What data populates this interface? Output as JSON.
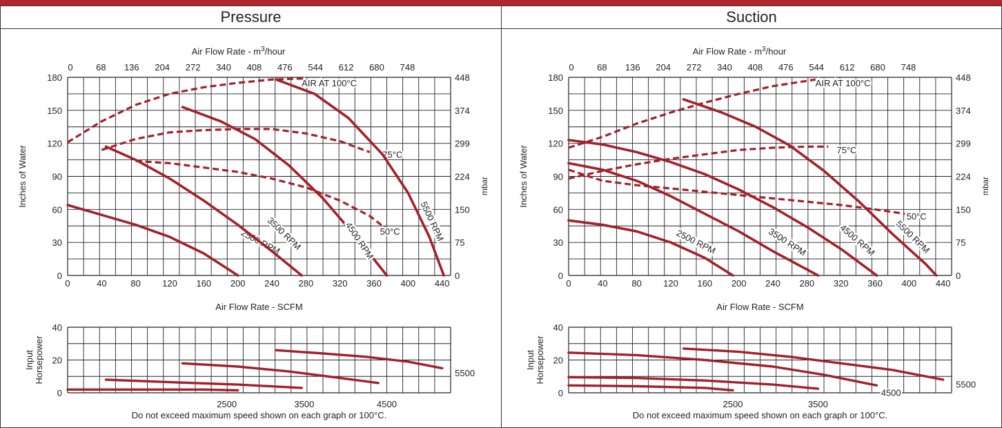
{
  "colors": {
    "curve": "#a3202a",
    "grid": "#222222",
    "header": "#b0272d"
  },
  "chart_data": [
    {
      "type": "line",
      "title": "Pressure",
      "top_axis_label": "Air Flow Rate - m",
      "top_axis_label_sup": "3",
      "top_axis_label_tail": "/hour",
      "top_axis_ticks": [
        "0",
        "68",
        "136",
        "204",
        "272",
        "340",
        "408",
        "476",
        "544",
        "612",
        "680",
        "748"
      ],
      "xlabel": "Air Flow Rate - SCFM",
      "x_ticks": [
        "0",
        "40",
        "80",
        "120",
        "160",
        "200",
        "240",
        "280",
        "320",
        "360",
        "400",
        "440"
      ],
      "ylabel": "Inches of Water",
      "y_ticks": [
        "0",
        "30",
        "60",
        "90",
        "120",
        "150",
        "180"
      ],
      "y2label": "mbar",
      "y2_ticks": [
        "0",
        "75",
        "150",
        "224",
        "299",
        "374",
        "448"
      ],
      "xlim": [
        0,
        450
      ],
      "ylim": [
        0,
        180
      ],
      "series": [
        {
          "name": "2500 RPM",
          "label_at": [
            225,
            28
          ],
          "label_rotate": 28,
          "points": [
            [
              0,
              64
            ],
            [
              40,
              55
            ],
            [
              80,
              46
            ],
            [
              120,
              35
            ],
            [
              160,
              20
            ],
            [
              200,
              0
            ]
          ]
        },
        {
          "name": "3500 RPM",
          "label_at": [
            252,
            36
          ],
          "label_rotate": 44,
          "points": [
            [
              45,
              117
            ],
            [
              80,
              105
            ],
            [
              120,
              88
            ],
            [
              160,
              68
            ],
            [
              200,
              46
            ],
            [
              240,
              22
            ],
            [
              275,
              0
            ]
          ]
        },
        {
          "name": "4500 RPM",
          "label_at": [
            340,
            30
          ],
          "label_rotate": 56,
          "points": [
            [
              135,
              153
            ],
            [
              180,
              140
            ],
            [
              220,
              124
            ],
            [
              260,
              100
            ],
            [
              300,
              70
            ],
            [
              340,
              34
            ],
            [
              375,
              0
            ]
          ]
        },
        {
          "name": "5500 RPM",
          "label_at": [
            425,
            48
          ],
          "label_rotate": 65,
          "points": [
            [
              245,
              178
            ],
            [
              290,
              165
            ],
            [
              330,
              143
            ],
            [
              370,
              110
            ],
            [
              400,
              75
            ],
            [
              425,
              35
            ],
            [
              442,
              0
            ]
          ]
        }
      ],
      "limit_curves": [
        {
          "name": "AIR AT 100°C",
          "label_at": [
            275,
            175
          ],
          "label_align": "start",
          "points": [
            [
              0,
              121
            ],
            [
              40,
              140
            ],
            [
              80,
              155
            ],
            [
              120,
              165
            ],
            [
              160,
              171
            ],
            [
              200,
              175
            ],
            [
              240,
              178
            ],
            [
              280,
              179
            ]
          ]
        },
        {
          "name": "75°C",
          "label_at": [
            370,
            110
          ],
          "label_align": "start",
          "points": [
            [
              40,
              114
            ],
            [
              80,
              124
            ],
            [
              120,
              130
            ],
            [
              160,
              132
            ],
            [
              200,
              133
            ],
            [
              240,
              133
            ],
            [
              280,
              129
            ],
            [
              320,
              122
            ],
            [
              355,
              112
            ]
          ]
        },
        {
          "name": "50°C",
          "label_at": [
            367,
            40
          ],
          "label_align": "start",
          "points": [
            [
              80,
              104
            ],
            [
              120,
              102
            ],
            [
              160,
              98
            ],
            [
              200,
              94
            ],
            [
              240,
              88
            ],
            [
              280,
              80
            ],
            [
              320,
              68
            ],
            [
              355,
              54
            ],
            [
              375,
              42
            ]
          ]
        }
      ],
      "hp": {
        "ylabel_lines": [
          "Input",
          "Horsepower"
        ],
        "y_ticks": [
          "0",
          "20",
          "40"
        ],
        "ylim": [
          0,
          40
        ],
        "series": [
          {
            "name": "2500",
            "label_at": [
              187,
              -3
            ],
            "label_align": "middle",
            "points": [
              [
                0,
                2
              ],
              [
                80,
                2
              ],
              [
                160,
                2
              ],
              [
                200,
                1.5
              ]
            ]
          },
          {
            "name": "3500",
            "label_at": [
              278,
              -3
            ],
            "label_align": "middle",
            "points": [
              [
                45,
                8
              ],
              [
                120,
                6.5
              ],
              [
                200,
                5
              ],
              [
                275,
                3
              ]
            ]
          },
          {
            "name": "4500",
            "label_at": [
              375,
              -3
            ],
            "label_align": "middle",
            "points": [
              [
                135,
                18
              ],
              [
                200,
                16
              ],
              [
                260,
                13
              ],
              [
                320,
                9
              ],
              [
                365,
                6
              ]
            ]
          },
          {
            "name": "5500",
            "label_at": [
              455,
              16
            ],
            "label_align": "start",
            "points": [
              [
                245,
                26
              ],
              [
                300,
                24
              ],
              [
                350,
                22
              ],
              [
                400,
                19
              ],
              [
                440,
                15
              ]
            ]
          }
        ]
      },
      "note": "Do not exceed maximum speed shown on each graph or 100°C."
    },
    {
      "type": "line",
      "title": "Suction",
      "top_axis_label": "Air Flow Rate - m",
      "top_axis_label_sup": "3",
      "top_axis_label_tail": "/hour",
      "top_axis_ticks": [
        "0",
        "68",
        "136",
        "204",
        "272",
        "340",
        "408",
        "476",
        "544",
        "612",
        "680",
        "748"
      ],
      "xlabel": "Air Flow Rate - SCFM",
      "x_ticks": [
        "0",
        "40",
        "80",
        "120",
        "160",
        "200",
        "240",
        "280",
        "320",
        "360",
        "400",
        "440"
      ],
      "ylabel": "Inches of Water",
      "y_ticks": [
        "0",
        "30",
        "60",
        "90",
        "120",
        "150",
        "180"
      ],
      "y2label": "mbar",
      "y2_ticks": [
        "0",
        "75",
        "150",
        "224",
        "299",
        "374",
        "448"
      ],
      "xlim": [
        0,
        450
      ],
      "ylim": [
        0,
        180
      ],
      "series": [
        {
          "name": "2500 RPM",
          "label_at": [
            148,
            28
          ],
          "label_rotate": 27,
          "points": [
            [
              0,
              50
            ],
            [
              40,
              46
            ],
            [
              80,
              40
            ],
            [
              120,
              30
            ],
            [
              160,
              16
            ],
            [
              193,
              0
            ]
          ]
        },
        {
          "name": "3500 RPM",
          "label_at": [
            255,
            28
          ],
          "label_rotate": 33,
          "points": [
            [
              0,
              102
            ],
            [
              40,
              96
            ],
            [
              80,
              86
            ],
            [
              120,
              72
            ],
            [
              160,
              56
            ],
            [
              200,
              40
            ],
            [
              240,
              22
            ],
            [
              293,
              0
            ]
          ]
        },
        {
          "name": "4500 RPM",
          "label_at": [
            337,
            30
          ],
          "label_rotate": 41,
          "points": [
            [
              0,
              123
            ],
            [
              40,
              119
            ],
            [
              80,
              112
            ],
            [
              120,
              103
            ],
            [
              160,
              92
            ],
            [
              200,
              78
            ],
            [
              240,
              62
            ],
            [
              280,
              44
            ],
            [
              320,
              24
            ],
            [
              362,
              0
            ]
          ]
        },
        {
          "name": "5500 RPM",
          "label_at": [
            402,
            33
          ],
          "label_rotate": 44,
          "points": [
            [
              135,
              160
            ],
            [
              180,
              148
            ],
            [
              220,
              135
            ],
            [
              260,
              118
            ],
            [
              300,
              95
            ],
            [
              340,
              68
            ],
            [
              380,
              38
            ],
            [
              420,
              10
            ],
            [
              432,
              0
            ]
          ]
        }
      ],
      "limit_curves": [
        {
          "name": "AIR AT 100°C",
          "label_at": [
            290,
            175
          ],
          "label_align": "start",
          "points": [
            [
              0,
              116
            ],
            [
              40,
              126
            ],
            [
              80,
              138
            ],
            [
              120,
              148
            ],
            [
              160,
              157
            ],
            [
              200,
              165
            ],
            [
              240,
              172
            ],
            [
              290,
              178
            ]
          ]
        },
        {
          "name": "75°C",
          "label_at": [
            315,
            114
          ],
          "label_align": "start",
          "points": [
            [
              0,
              88
            ],
            [
              40,
              95
            ],
            [
              80,
              101
            ],
            [
              120,
              106
            ],
            [
              160,
              110
            ],
            [
              200,
              114
            ],
            [
              240,
              116
            ],
            [
              280,
              117
            ],
            [
              305,
              117
            ]
          ]
        },
        {
          "name": "50°C",
          "label_at": [
            397,
            54
          ],
          "label_align": "start",
          "points": [
            [
              0,
              96
            ],
            [
              40,
              86
            ],
            [
              80,
              82
            ],
            [
              120,
              79
            ],
            [
              160,
              76
            ],
            [
              200,
              73
            ],
            [
              240,
              70
            ],
            [
              280,
              67
            ],
            [
              320,
              64
            ],
            [
              360,
              60
            ],
            [
              395,
              56
            ]
          ]
        }
      ],
      "hp": {
        "ylabel_lines": [
          "Input",
          "Horsepower"
        ],
        "y_ticks": [
          "0",
          "20",
          "40"
        ],
        "ylim": [
          0,
          40
        ],
        "series": [
          {
            "name": "2500",
            "label_at": [
              193,
              -3
            ],
            "label_align": "middle",
            "points": [
              [
                0,
                4.5
              ],
              [
                80,
                4
              ],
              [
                160,
                3
              ],
              [
                193,
                1.5
              ]
            ]
          },
          {
            "name": "3500",
            "label_at": [
              293,
              -3
            ],
            "label_align": "middle",
            "points": [
              [
                0,
                9.5
              ],
              [
                80,
                9
              ],
              [
                160,
                7.5
              ],
              [
                240,
                5
              ],
              [
                293,
                2.5
              ]
            ]
          },
          {
            "name": "4500",
            "label_at": [
              367,
              4
            ],
            "label_align": "start",
            "points": [
              [
                0,
                24.5
              ],
              [
                80,
                23
              ],
              [
                160,
                20
              ],
              [
                240,
                16
              ],
              [
                300,
                11
              ],
              [
                362,
                4.5
              ]
            ]
          },
          {
            "name": "5500",
            "label_at": [
              455,
              9
            ],
            "label_align": "start",
            "points": [
              [
                135,
                27
              ],
              [
                200,
                25
              ],
              [
                260,
                22
              ],
              [
                320,
                18
              ],
              [
                380,
                14
              ],
              [
                440,
                8
              ]
            ]
          }
        ]
      },
      "note": "Do not exceed maximum speed shown on each graph or 100°C."
    }
  ]
}
